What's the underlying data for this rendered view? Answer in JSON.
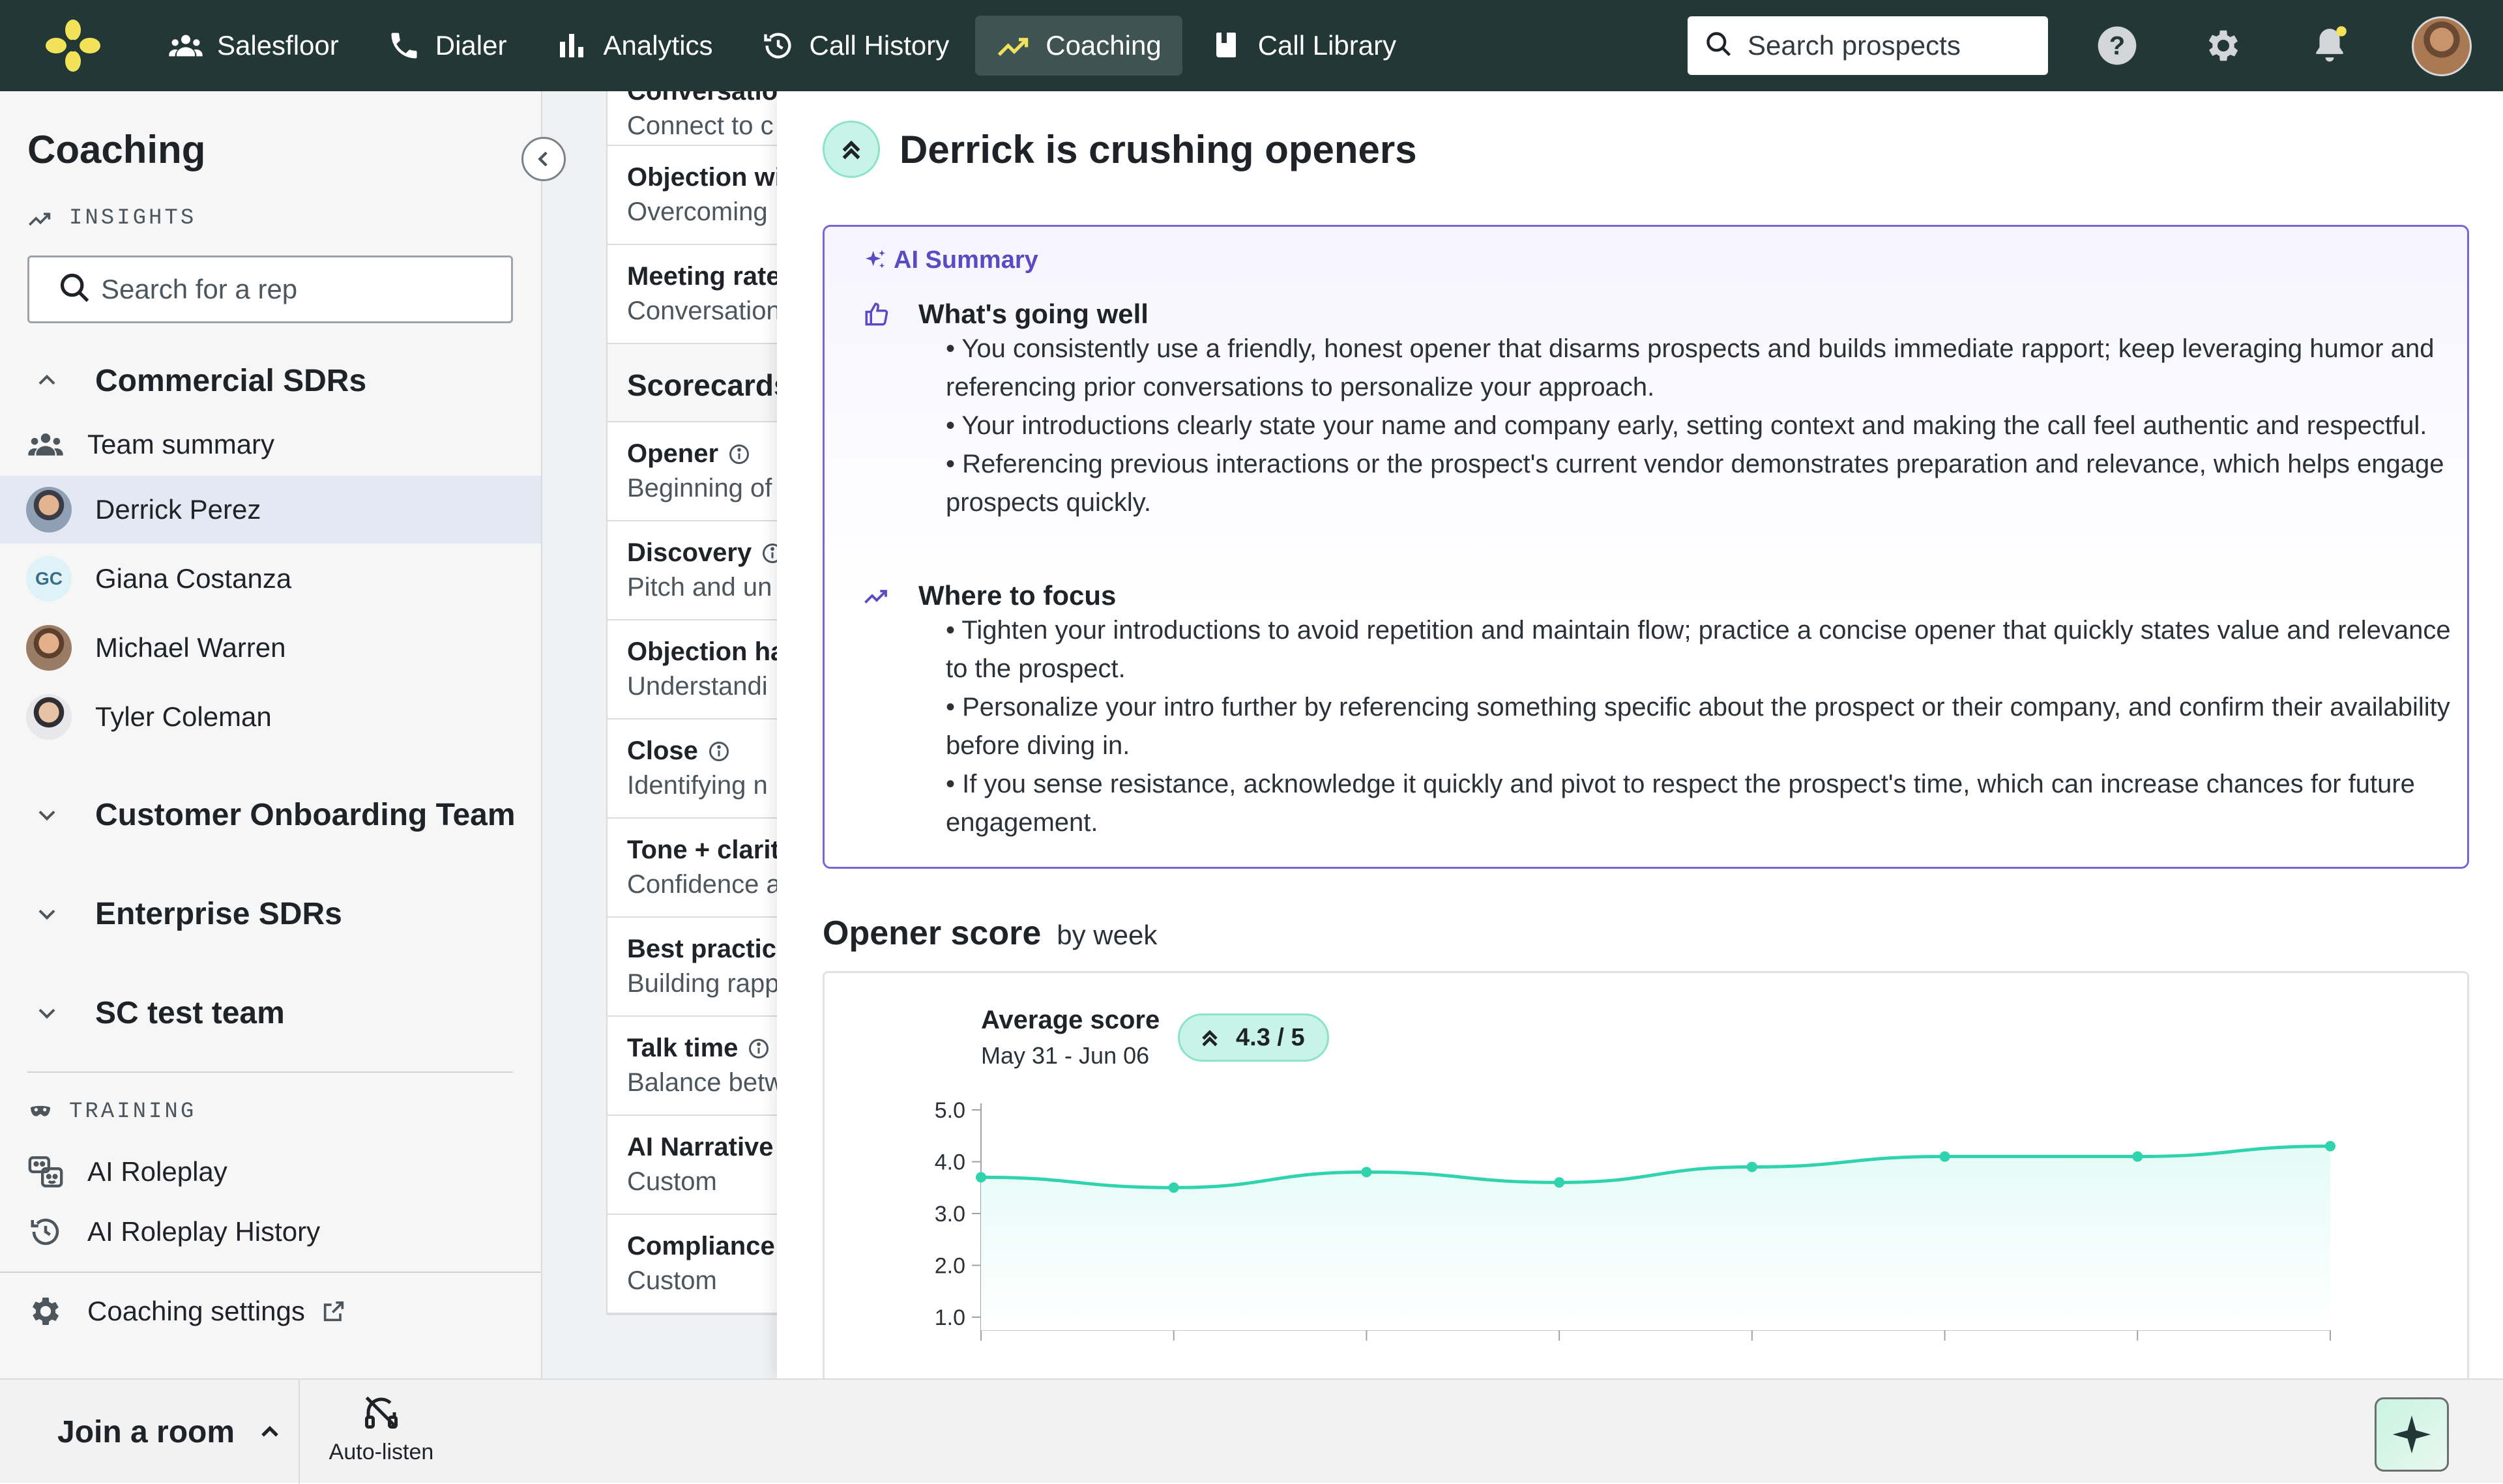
{
  "nav": {
    "items": [
      {
        "label": "Salesfloor",
        "icon": "people-icon"
      },
      {
        "label": "Dialer",
        "icon": "phone-icon"
      },
      {
        "label": "Analytics",
        "icon": "bar-chart-icon"
      },
      {
        "label": "Call History",
        "icon": "history-icon"
      },
      {
        "label": "Coaching",
        "icon": "trend-icon",
        "active": true
      },
      {
        "label": "Call Library",
        "icon": "book-icon"
      }
    ],
    "search_placeholder": "Search prospects"
  },
  "sidebar": {
    "title": "Coaching",
    "insights_label": "INSIGHTS",
    "rep_search_placeholder": "Search for a rep",
    "teams": [
      {
        "name": "Commercial SDRs",
        "expanded": true
      },
      {
        "name": "Customer Onboarding Team",
        "expanded": false
      },
      {
        "name": "Enterprise SDRs",
        "expanded": false
      },
      {
        "name": "SC test team",
        "expanded": false
      }
    ],
    "team_summary_label": "Team summary",
    "members": [
      {
        "name": "Derrick Perez",
        "selected": true
      },
      {
        "name": "Giana Costanza",
        "initials": "GC"
      },
      {
        "name": "Michael Warren"
      },
      {
        "name": "Tyler Coleman"
      }
    ],
    "training_label": "TRAINING",
    "training_items": [
      "AI Roleplay",
      "AI Roleplay History"
    ],
    "settings_label": "Coaching settings"
  },
  "scorecards": {
    "top_items": [
      {
        "title": "Conversatio",
        "sub": "Connect to c"
      },
      {
        "title": "Objection wi",
        "sub": "Overcoming"
      },
      {
        "title": "Meeting rate",
        "sub": "Conversation"
      }
    ],
    "heading": "Scorecards",
    "items": [
      {
        "title": "Opener",
        "sub": "Beginning of",
        "info": true
      },
      {
        "title": "Discovery",
        "sub": "Pitch and un",
        "info": true
      },
      {
        "title": "Objection ha",
        "sub": "Understandi"
      },
      {
        "title": "Close",
        "sub": "Identifying n",
        "info": true
      },
      {
        "title": "Tone + clarit",
        "sub": "Confidence a"
      },
      {
        "title": "Best practic",
        "sub": "Building rapp"
      },
      {
        "title": "Talk time",
        "sub": "Balance betw",
        "info": true
      },
      {
        "title": "AI Narrative",
        "sub": "Custom"
      },
      {
        "title": "Compliance",
        "sub": "Custom"
      }
    ]
  },
  "main": {
    "headline": "Derrick is crushing openers",
    "ai_summary": {
      "title": "AI Summary",
      "going_well_title": "What's going well",
      "going_well": [
        "• You consistently use a friendly, honest opener that disarms prospects and builds immediate rapport; keep leveraging humor and referencing prior conversations to personalize your approach.",
        "• Your introductions clearly state your name and company early, setting context and making the call feel authentic and respectful.",
        "• Referencing previous interactions or the prospect's current vendor demonstrates preparation and relevance, which helps engage prospects quickly."
      ],
      "focus_title": "Where to focus",
      "focus": [
        "• Tighten your introductions to avoid repetition and maintain flow; practice a concise opener that quickly states value and relevance to the prospect.",
        "• Personalize your intro further by referencing something specific about the prospect or their company, and confirm their availability before diving in.",
        "• If you sense resistance, acknowledge it quickly and pivot to respect the prospect's time, which can increase chances for future engagement."
      ]
    },
    "score_title": "Opener score",
    "score_subtitle": "by week",
    "avg_label": "Average score",
    "avg_range": "May 31 - Jun 06",
    "avg_value": "4.3 / 5"
  },
  "chart_data": {
    "type": "area",
    "title": "Opener score",
    "x": [
      1,
      2,
      3,
      4,
      5,
      6,
      7,
      8
    ],
    "series": [
      {
        "values": [
          3.7,
          3.5,
          3.8,
          3.6,
          3.9,
          4.1,
          4.1,
          4.3
        ]
      }
    ],
    "ylim": [
      1.0,
      5.0
    ],
    "yticks": [
      "5.0",
      "4.0",
      "3.0",
      "2.0",
      "1.0"
    ],
    "color": "#2fd3ae",
    "fill": "#e4fbf6",
    "grid": false
  },
  "bottom": {
    "join_room": "Join a room",
    "auto_listen": "Auto-listen"
  }
}
